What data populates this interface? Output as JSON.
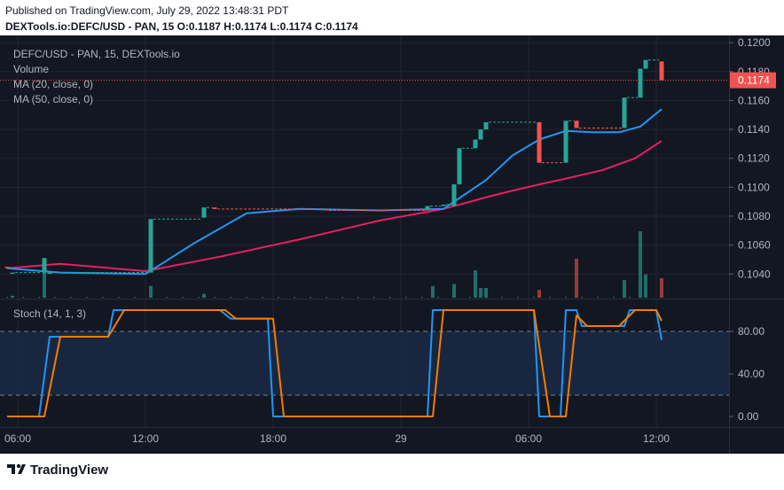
{
  "header": {
    "published": "Published on TradingView.com, July 29, 2022 13:48:31 PDT",
    "symbol_line": "DEXTools.io:DEFC/USD - PAN, 15  O:0.1187  H:0.1174  L:0.1174  C:0.1174"
  },
  "legend": {
    "title": "DEFC/USD - PAN, 15, DEXTools.io",
    "volume": "Volume",
    "ma20": "MA (20, close, 0)",
    "ma50": "MA (50, close, 0)",
    "stoch": "Stoch (14, 1, 3)"
  },
  "footer": {
    "brand": "TradingView"
  },
  "colors": {
    "background": "#131722",
    "up": "#26a69a",
    "down": "#ef5350",
    "ma20": "#2196f3",
    "ma50": "#e91e63",
    "stoch_k": "#2196f3",
    "stoch_d": "#f57c00",
    "price_tag": "#ef5350"
  },
  "chart_data": [
    {
      "type": "candlestick",
      "title": "DEFC/USD - PAN, 15, DEXTools.io",
      "x_ticks": [
        "06:00",
        "12:00",
        "18:00",
        "29",
        "06:00",
        "12:00"
      ],
      "x_tick_index": [
        2,
        26,
        50,
        74,
        98,
        122
      ],
      "y_ticks": [
        "0.1040",
        "0.1060",
        "0.1080",
        "0.1100",
        "0.1120",
        "0.1140",
        "0.1160",
        "0.1180",
        "0.1200"
      ],
      "ylim": [
        0.1023,
        0.1205
      ],
      "last_price": "0.1174",
      "candles": [
        {
          "i": 0,
          "o": 0.1045,
          "h": 0.1045,
          "l": 0.1044,
          "c": 0.1044
        },
        {
          "i": 1,
          "o": 0.1041,
          "h": 0.1041,
          "l": 0.1041,
          "c": 0.1041
        },
        {
          "i": 7,
          "o": 0.1041,
          "h": 0.1051,
          "l": 0.104,
          "c": 0.1051
        },
        {
          "i": 8,
          "o": 0.1041,
          "h": 0.1041,
          "l": 0.1041,
          "c": 0.1041
        },
        {
          "i": 27,
          "o": 0.1041,
          "h": 0.1078,
          "l": 0.1041,
          "c": 0.1078
        },
        {
          "i": 37,
          "o": 0.1079,
          "h": 0.1086,
          "l": 0.1079,
          "c": 0.1086
        },
        {
          "i": 39,
          "o": 0.1086,
          "h": 0.1086,
          "l": 0.1085,
          "c": 0.1085
        },
        {
          "i": 60,
          "o": 0.1085,
          "h": 0.1085,
          "l": 0.1084,
          "c": 0.1084
        },
        {
          "i": 79,
          "o": 0.1084,
          "h": 0.1087,
          "l": 0.1084,
          "c": 0.1087
        },
        {
          "i": 82,
          "o": 0.1087,
          "h": 0.1088,
          "l": 0.1087,
          "c": 0.1088
        },
        {
          "i": 84,
          "o": 0.1087,
          "h": 0.1102,
          "l": 0.1087,
          "c": 0.1102
        },
        {
          "i": 85,
          "o": 0.1102,
          "h": 0.1127,
          "l": 0.1102,
          "c": 0.1127
        },
        {
          "i": 88,
          "o": 0.1127,
          "h": 0.1133,
          "l": 0.1127,
          "c": 0.1133
        },
        {
          "i": 89,
          "o": 0.1133,
          "h": 0.114,
          "l": 0.1133,
          "c": 0.114
        },
        {
          "i": 90,
          "o": 0.114,
          "h": 0.1145,
          "l": 0.114,
          "c": 0.1145
        },
        {
          "i": 100,
          "o": 0.1145,
          "h": 0.1145,
          "l": 0.1117,
          "c": 0.1117
        },
        {
          "i": 105,
          "o": 0.1117,
          "h": 0.1146,
          "l": 0.1117,
          "c": 0.1146
        },
        {
          "i": 107,
          "o": 0.1146,
          "h": 0.1146,
          "l": 0.1141,
          "c": 0.1141
        },
        {
          "i": 116,
          "o": 0.1141,
          "h": 0.1162,
          "l": 0.1141,
          "c": 0.1162
        },
        {
          "i": 119,
          "o": 0.1162,
          "h": 0.1182,
          "l": 0.1162,
          "c": 0.1182
        },
        {
          "i": 120,
          "o": 0.1182,
          "h": 0.1188,
          "l": 0.1182,
          "c": 0.1188
        },
        {
          "i": 123,
          "o": 0.1187,
          "h": 0.1187,
          "l": 0.1174,
          "c": 0.1174
        }
      ],
      "volume": [
        {
          "i": 7,
          "v": 0.9,
          "up": true
        },
        {
          "i": 1,
          "v": 0.05,
          "up": true
        },
        {
          "i": 27,
          "v": 0.3,
          "up": true
        },
        {
          "i": 37,
          "v": 0.1,
          "up": true
        },
        {
          "i": 80,
          "v": 0.3,
          "up": true
        },
        {
          "i": 84,
          "v": 0.35,
          "up": true
        },
        {
          "i": 88,
          "v": 0.7,
          "up": true
        },
        {
          "i": 89,
          "v": 0.25,
          "up": true
        },
        {
          "i": 90,
          "v": 0.25,
          "up": true
        },
        {
          "i": 100,
          "v": 0.2,
          "up": false
        },
        {
          "i": 107,
          "v": 1.0,
          "up": false
        },
        {
          "i": 116,
          "v": 0.45,
          "up": true
        },
        {
          "i": 119,
          "v": 1.7,
          "up": true
        },
        {
          "i": 120,
          "v": 0.6,
          "up": true
        },
        {
          "i": 123,
          "v": 0.5,
          "up": false
        }
      ],
      "ma20": [
        {
          "i": 0,
          "v": 0.1044
        },
        {
          "i": 10,
          "v": 0.1041
        },
        {
          "i": 26,
          "v": 0.104
        },
        {
          "i": 35,
          "v": 0.1061
        },
        {
          "i": 45,
          "v": 0.1082
        },
        {
          "i": 55,
          "v": 0.1085
        },
        {
          "i": 70,
          "v": 0.1084
        },
        {
          "i": 82,
          "v": 0.1085
        },
        {
          "i": 90,
          "v": 0.1105
        },
        {
          "i": 95,
          "v": 0.1122
        },
        {
          "i": 100,
          "v": 0.1133
        },
        {
          "i": 105,
          "v": 0.1139
        },
        {
          "i": 110,
          "v": 0.1138
        },
        {
          "i": 115,
          "v": 0.1138
        },
        {
          "i": 119,
          "v": 0.1142
        },
        {
          "i": 123,
          "v": 0.1154
        }
      ],
      "ma50": [
        {
          "i": 0,
          "v": 0.1044
        },
        {
          "i": 10,
          "v": 0.1047
        },
        {
          "i": 26,
          "v": 0.1042
        },
        {
          "i": 40,
          "v": 0.1052
        },
        {
          "i": 55,
          "v": 0.1064
        },
        {
          "i": 70,
          "v": 0.1077
        },
        {
          "i": 82,
          "v": 0.1085
        },
        {
          "i": 92,
          "v": 0.1095
        },
        {
          "i": 100,
          "v": 0.1102
        },
        {
          "i": 105,
          "v": 0.1106
        },
        {
          "i": 112,
          "v": 0.1112
        },
        {
          "i": 118,
          "v": 0.112
        },
        {
          "i": 123,
          "v": 0.1132
        }
      ]
    },
    {
      "type": "line",
      "title": "Stoch (14, 1, 3)",
      "y_ticks": [
        "0.00",
        "40.00",
        "80.00"
      ],
      "ylim": [
        -10,
        110
      ],
      "bands": [
        20,
        80
      ],
      "series": [
        {
          "name": "K",
          "color": "#2196f3",
          "points": [
            {
              "i": 0,
              "v": 0
            },
            {
              "i": 6,
              "v": 0
            },
            {
              "i": 8,
              "v": 75
            },
            {
              "i": 19,
              "v": 75
            },
            {
              "i": 20,
              "v": 100
            },
            {
              "i": 40,
              "v": 100
            },
            {
              "i": 42,
              "v": 92
            },
            {
              "i": 49,
              "v": 92
            },
            {
              "i": 50,
              "v": 0
            },
            {
              "i": 79,
              "v": 0
            },
            {
              "i": 80,
              "v": 100
            },
            {
              "i": 99,
              "v": 100
            },
            {
              "i": 100,
              "v": 0
            },
            {
              "i": 104,
              "v": 0
            },
            {
              "i": 105,
              "v": 100
            },
            {
              "i": 107,
              "v": 100
            },
            {
              "i": 108,
              "v": 85
            },
            {
              "i": 116,
              "v": 85
            },
            {
              "i": 117,
              "v": 100
            },
            {
              "i": 122,
              "v": 100
            },
            {
              "i": 123,
              "v": 72
            }
          ]
        },
        {
          "name": "D",
          "color": "#f57c00",
          "points": [
            {
              "i": 0,
              "v": 0
            },
            {
              "i": 7,
              "v": 0
            },
            {
              "i": 10,
              "v": 75
            },
            {
              "i": 19,
              "v": 75
            },
            {
              "i": 22,
              "v": 100
            },
            {
              "i": 41,
              "v": 100
            },
            {
              "i": 43,
              "v": 92
            },
            {
              "i": 50,
              "v": 92
            },
            {
              "i": 52,
              "v": 0
            },
            {
              "i": 80,
              "v": 0
            },
            {
              "i": 82,
              "v": 100
            },
            {
              "i": 99,
              "v": 100
            },
            {
              "i": 102,
              "v": 0
            },
            {
              "i": 105,
              "v": 0
            },
            {
              "i": 107,
              "v": 95
            },
            {
              "i": 109,
              "v": 85
            },
            {
              "i": 115,
              "v": 85
            },
            {
              "i": 118,
              "v": 100
            },
            {
              "i": 122,
              "v": 100
            },
            {
              "i": 123,
              "v": 90
            }
          ]
        }
      ]
    }
  ]
}
